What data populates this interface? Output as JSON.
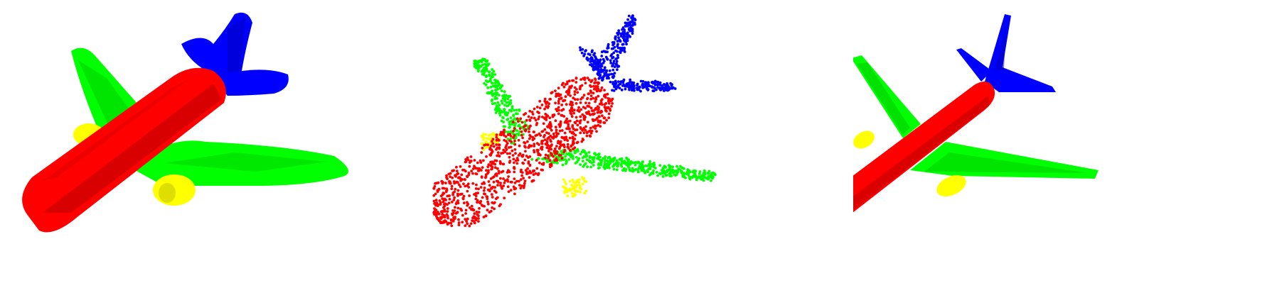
{
  "figure": {
    "panels": [
      {
        "kind": "coarse-mesh-segmentation"
      },
      {
        "kind": "point-cloud-segmentation"
      },
      {
        "kind": "fine-mesh-segmentation"
      }
    ]
  },
  "part_colors": {
    "fuselage": "#ff0000",
    "wings": "#00ff00",
    "tail": "#0000ff",
    "engines": "#ffff00"
  },
  "shading": {
    "fuselage_dark": "#b80000",
    "fuselage_mid": "#e00000",
    "wings_dark": "#00b400",
    "tail_dark": "#0000b0",
    "engines_dark": "#c8c800"
  }
}
